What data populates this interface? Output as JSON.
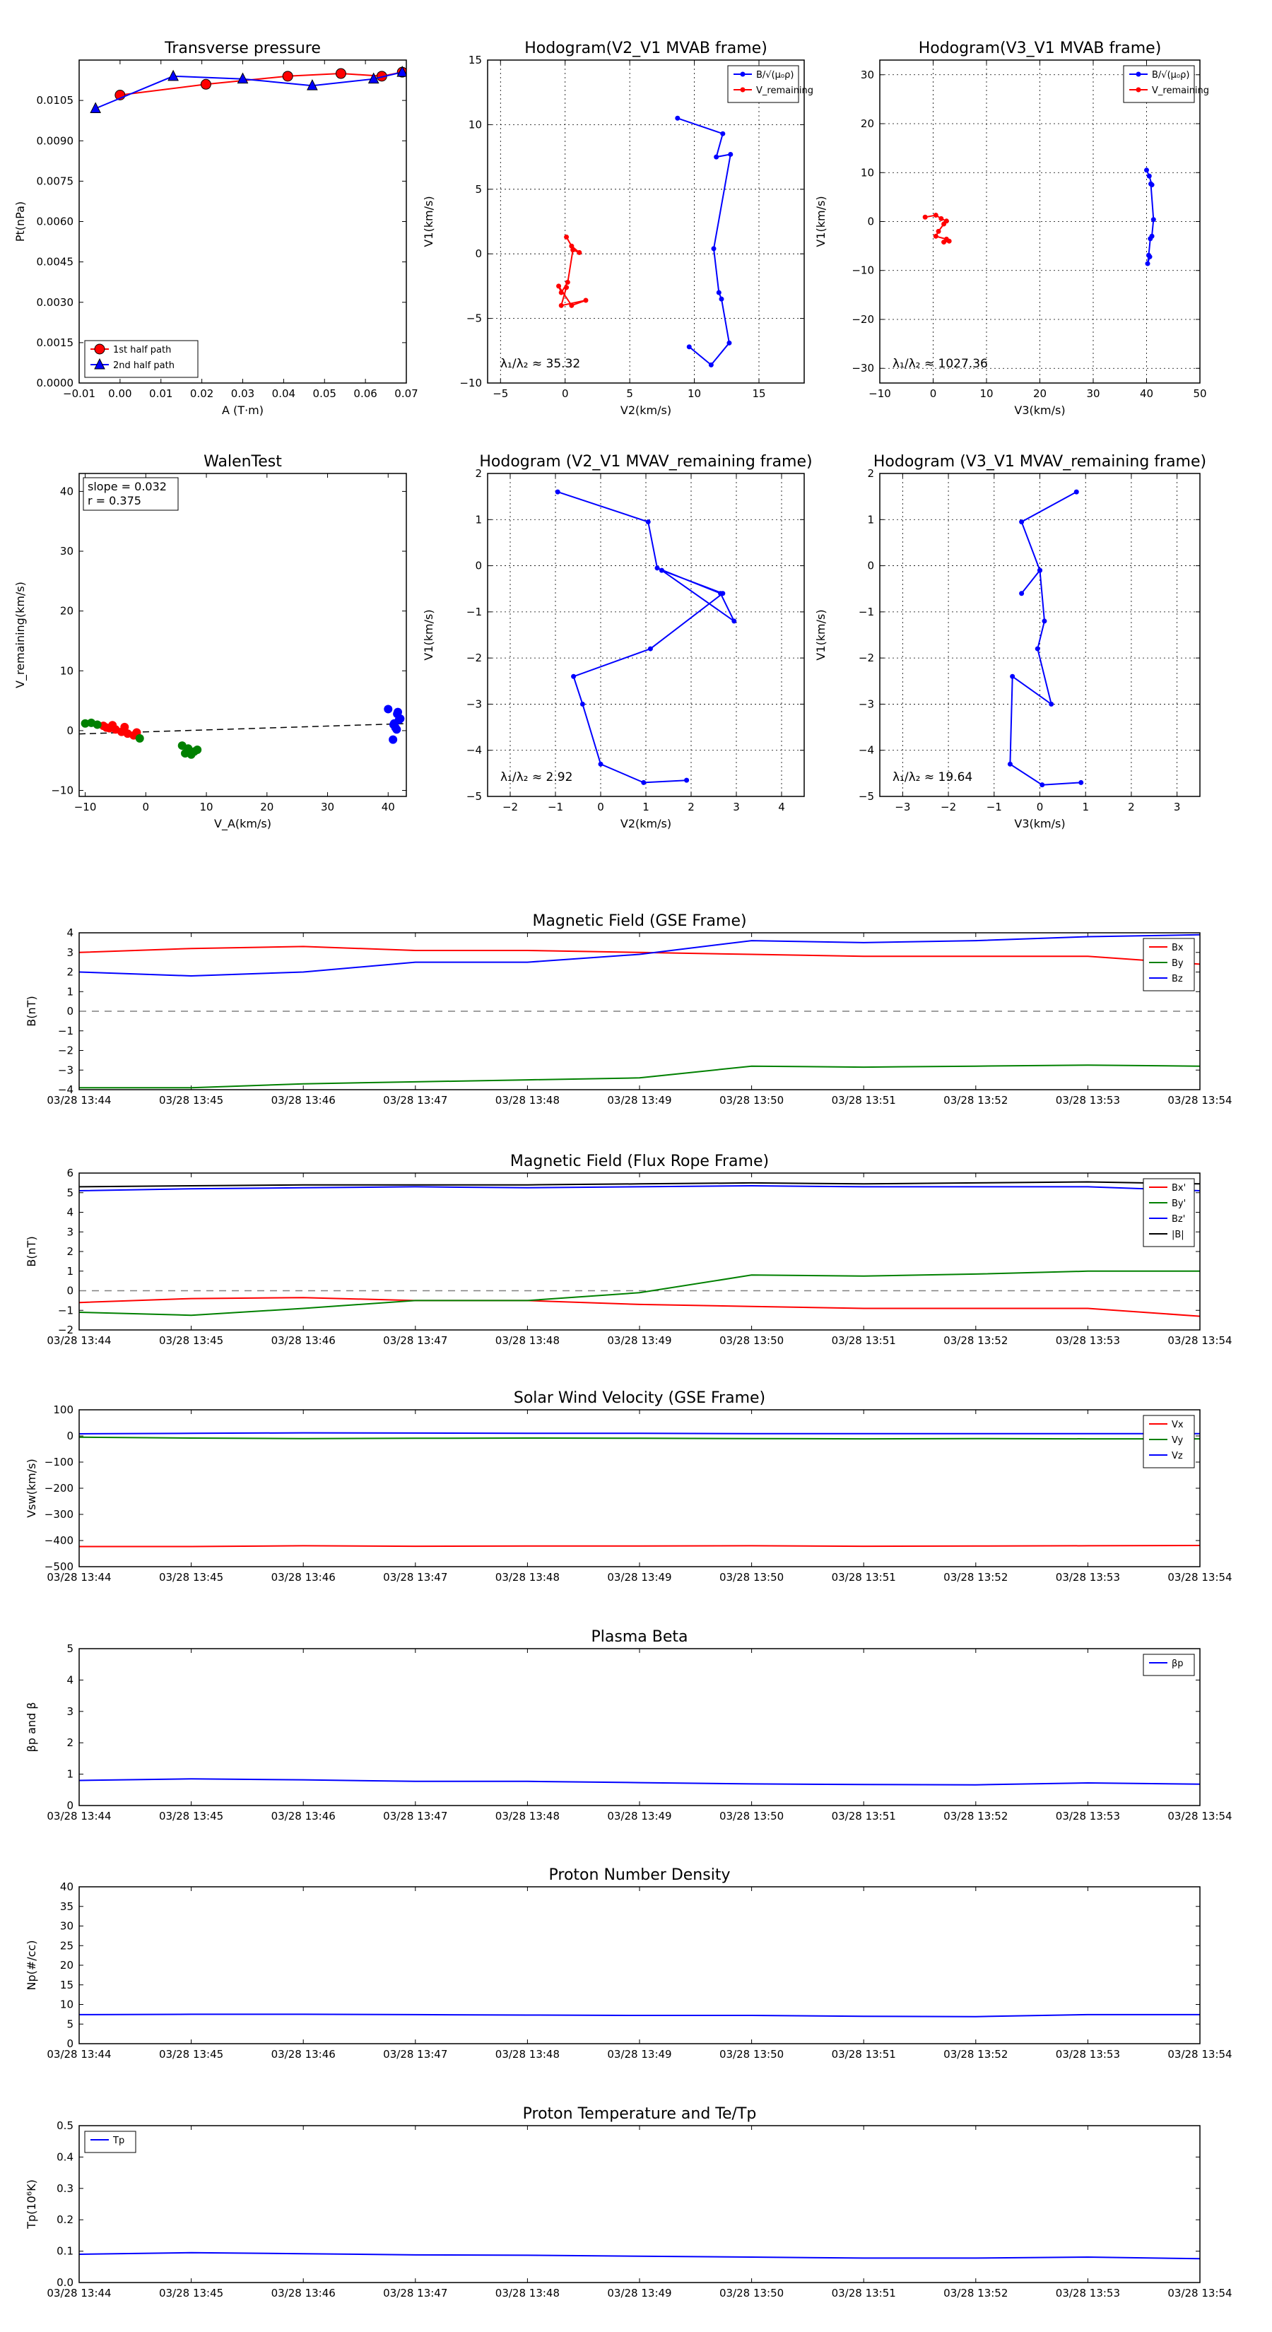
{
  "colors": {
    "red": "#ff0000",
    "blue": "#0000ff",
    "green": "#008000",
    "black": "#000000",
    "grey": "#808080"
  },
  "chart_data": [
    {
      "id": "pt",
      "type": "line",
      "title": "Transverse pressure",
      "xlabel": "A (T·m)",
      "ylabel": "Pt(nPa)",
      "xlim": [
        -0.01,
        0.07
      ],
      "ylim": [
        0,
        0.012
      ],
      "xticks": [
        -0.01,
        0.0,
        0.01,
        0.02,
        0.03,
        0.04,
        0.05,
        0.06,
        0.07
      ],
      "xtick_labels": [
        "−0.01",
        "0.00",
        "0.01",
        "0.02",
        "0.03",
        "0.04",
        "0.05",
        "0.06",
        "0.07"
      ],
      "yticks": [
        0,
        0.0015,
        0.003,
        0.0045,
        0.006,
        0.0075,
        0.009,
        0.0105
      ],
      "ytick_labels": [
        "0.0000",
        "0.0015",
        "0.0030",
        "0.0045",
        "0.0060",
        "0.0075",
        "0.0090",
        "0.0105"
      ],
      "grid": false,
      "legend_loc": "lower-left",
      "series": [
        {
          "name": "1st half path",
          "color": "#ff0000",
          "marker": "circle",
          "x": [
            0.069,
            0.064,
            0.054,
            0.041,
            0.021,
            0.0
          ],
          "y": [
            0.01155,
            0.0114,
            0.0115,
            0.0114,
            0.0111,
            0.0107
          ]
        },
        {
          "name": "2nd half path",
          "color": "#0000ff",
          "marker": "triangle",
          "x": [
            0.069,
            0.062,
            0.047,
            0.03,
            0.013,
            -0.006
          ],
          "y": [
            0.01155,
            0.0113,
            0.01105,
            0.0113,
            0.0114,
            0.0102
          ]
        }
      ]
    },
    {
      "id": "h_mvab_v2",
      "type": "line",
      "title": "Hodogram(V2_V1 MVAB frame)",
      "xlabel": "V2(km/s)",
      "ylabel": "V1(km/s)",
      "xlim": [
        -6,
        18.5
      ],
      "ylim": [
        -10,
        15
      ],
      "xticks": [
        -5,
        0,
        5,
        10,
        15
      ],
      "xtick_labels": [
        "−5",
        "0",
        "5",
        "10",
        "15"
      ],
      "yticks": [
        -10,
        -5,
        0,
        5,
        10,
        15
      ],
      "ytick_labels": [
        "−10",
        "−5",
        "0",
        "5",
        "10",
        "15"
      ],
      "grid": true,
      "legend_loc": "top-right",
      "annotation": "λ₁/λ₂ ≈ 35.32",
      "series": [
        {
          "name": "B/√(μ₀ρ)",
          "color": "#0000ff",
          "marker": "dot",
          "x": [
            8.7,
            12.2,
            11.7,
            12.8,
            11.5,
            11.9,
            12.1,
            12.7,
            11.3,
            9.6
          ],
          "y": [
            10.5,
            9.3,
            7.5,
            7.7,
            0.4,
            -3.0,
            -3.5,
            -6.9,
            -8.6,
            -7.2
          ]
        },
        {
          "name": "V_remaining",
          "color": "#ff0000",
          "marker": "dot",
          "x": [
            0.1,
            0.5,
            1.1,
            0.6,
            0.2,
            -0.3,
            -0.5,
            0.5,
            1.6,
            -0.3,
            0.1
          ],
          "y": [
            1.3,
            0.6,
            0.1,
            0.3,
            -2.2,
            -3.0,
            -2.5,
            -4.0,
            -3.6,
            -4.0,
            -2.6
          ]
        }
      ]
    },
    {
      "id": "h_mvab_v3",
      "type": "line",
      "title": "Hodogram(V3_V1 MVAB frame)",
      "xlabel": "V3(km/s)",
      "ylabel": "V1(km/s)",
      "xlim": [
        -10,
        50
      ],
      "ylim": [
        -33,
        33
      ],
      "xticks": [
        -10,
        0,
        10,
        20,
        30,
        40,
        50
      ],
      "xtick_labels": [
        "−10",
        "0",
        "10",
        "20",
        "30",
        "40",
        "50"
      ],
      "yticks": [
        -30,
        -20,
        -10,
        0,
        10,
        20,
        30
      ],
      "ytick_labels": [
        "−30",
        "−20",
        "−10",
        "0",
        "10",
        "20",
        "30"
      ],
      "grid": true,
      "legend_loc": "top-right",
      "annotation": "λ₁/λ₂ ≈ 1027.36",
      "series": [
        {
          "name": "B/√(μ₀ρ)",
          "color": "#0000ff",
          "marker": "dot",
          "x": [
            40.0,
            40.5,
            41.0,
            40.8,
            41.3,
            41.0,
            40.7,
            40.4,
            40.2,
            40.6
          ],
          "y": [
            10.5,
            9.3,
            7.5,
            7.7,
            0.4,
            -3.0,
            -3.5,
            -6.9,
            -8.6,
            -7.2
          ]
        },
        {
          "name": "V_remaining",
          "color": "#ff0000",
          "marker": "dot",
          "x": [
            -1.5,
            0.5,
            1.5,
            2.5,
            2.0,
            1.0,
            0.5,
            2.5,
            3.0,
            2.0
          ],
          "y": [
            0.9,
            1.3,
            0.6,
            0.1,
            -0.5,
            -2.0,
            -3.0,
            -3.6,
            -4.0,
            -4.2
          ]
        }
      ]
    },
    {
      "id": "walen",
      "type": "scatter",
      "title": "WalenTest",
      "xlabel": "V_A(km/s)",
      "ylabel": "V_remaining(km/s)",
      "xlim": [
        -11,
        43
      ],
      "ylim": [
        -11,
        43
      ],
      "xticks": [
        -10,
        0,
        10,
        20,
        30,
        40
      ],
      "xtick_labels": [
        "−10",
        "0",
        "10",
        "20",
        "30",
        "40"
      ],
      "yticks": [
        -10,
        0,
        10,
        20,
        30,
        40
      ],
      "ytick_labels": [
        "−10",
        "0",
        "10",
        "20",
        "30",
        "40"
      ],
      "grid": false,
      "stats": [
        "slope = 0.032",
        "r = 0.375"
      ],
      "fit": {
        "slope": 0.032,
        "intercept": -0.2,
        "x": [
          -11,
          43
        ]
      },
      "series": [
        {
          "color": "#ff0000",
          "x": [
            -7.0,
            -6.0,
            -5.0,
            -4.0,
            -3.0,
            -2.0,
            -1.5,
            -3.5,
            -5.5,
            -6.5
          ],
          "y": [
            0.8,
            0.4,
            0.2,
            -0.2,
            -0.5,
            -0.8,
            -0.3,
            0.6,
            0.9,
            0.5
          ]
        },
        {
          "color": "#008000",
          "x": [
            -10.0,
            -9.0,
            -8.0,
            -1.0,
            6.0,
            7.0,
            8.0,
            7.5,
            8.5,
            6.5
          ],
          "y": [
            1.2,
            1.3,
            1.0,
            -1.3,
            -2.5,
            -3.0,
            -3.5,
            -4.0,
            -3.2,
            -3.8
          ]
        },
        {
          "color": "#0000ff",
          "x": [
            40.0,
            41.0,
            41.5,
            41.8,
            41.2,
            40.8,
            41.6,
            42.0,
            41.4,
            40.9
          ],
          "y": [
            3.6,
            1.2,
            2.8,
            1.8,
            0.5,
            -1.5,
            3.1,
            2.0,
            0.2,
            1.0
          ]
        }
      ]
    },
    {
      "id": "h_mvav_v2",
      "type": "line",
      "title": "Hodogram (V2_V1 MVAV_remaining frame)",
      "xlabel": "V2(km/s)",
      "ylabel": "V1(km/s)",
      "xlim": [
        -2.5,
        4.5
      ],
      "ylim": [
        -5,
        2
      ],
      "xticks": [
        -2,
        -1,
        0,
        1,
        2,
        3,
        4
      ],
      "xtick_labels": [
        "−2",
        "−1",
        "0",
        "1",
        "2",
        "3",
        "4"
      ],
      "yticks": [
        -5,
        -4,
        -3,
        -2,
        -1,
        0,
        1,
        2
      ],
      "ytick_labels": [
        "−5",
        "−4",
        "−3",
        "−2",
        "−1",
        "0",
        "1",
        "2"
      ],
      "grid": true,
      "annotation": "λ₁/λ₂ ≈ 2.92",
      "series": [
        {
          "color": "#0000ff",
          "marker": "dot",
          "x": [
            -0.95,
            1.05,
            1.25,
            2.65,
            2.95,
            1.35,
            2.7,
            1.1,
            -0.6,
            -0.4,
            0.0,
            0.95,
            1.9
          ],
          "y": [
            1.6,
            0.95,
            -0.05,
            -0.6,
            -1.2,
            -0.1,
            -0.6,
            -1.8,
            -2.4,
            -3.0,
            -4.3,
            -4.7,
            -4.65
          ]
        }
      ]
    },
    {
      "id": "h_mvav_v3",
      "type": "line",
      "title": "Hodogram (V3_V1 MVAV_remaining frame)",
      "xlabel": "V3(km/s)",
      "ylabel": "V1(km/s)",
      "xlim": [
        -3.5,
        3.5
      ],
      "ylim": [
        -5,
        2
      ],
      "xticks": [
        -3,
        -2,
        -1,
        0,
        1,
        2,
        3
      ],
      "xtick_labels": [
        "−3",
        "−2",
        "−1",
        "0",
        "1",
        "2",
        "3"
      ],
      "yticks": [
        -5,
        -4,
        -3,
        -2,
        -1,
        0,
        1,
        2
      ],
      "ytick_labels": [
        "−5",
        "−4",
        "−3",
        "−2",
        "−1",
        "0",
        "1",
        "2"
      ],
      "grid": true,
      "annotation": "λ₁/λ₂ ≈ 19.64",
      "series": [
        {
          "color": "#0000ff",
          "marker": "dot",
          "x": [
            0.8,
            -0.4,
            0.0,
            -0.4,
            0.0,
            0.1,
            -0.05,
            0.25,
            -0.6,
            -0.65,
            0.05,
            0.9
          ],
          "y": [
            1.6,
            0.95,
            -0.1,
            -0.6,
            -0.1,
            -1.2,
            -1.8,
            -3.0,
            -2.4,
            -4.3,
            -4.75,
            -4.7
          ]
        }
      ]
    },
    {
      "id": "b_gse",
      "type": "line",
      "title": "Magnetic Field (GSE Frame)",
      "ylabel": "B(nT)",
      "x": [
        "03/28 13:44",
        "03/28 13:45",
        "03/28 13:46",
        "03/28 13:47",
        "03/28 13:48",
        "03/28 13:49",
        "03/28 13:50",
        "03/28 13:51",
        "03/28 13:52",
        "03/28 13:53",
        "03/28 13:54"
      ],
      "ylim": [
        -4,
        4
      ],
      "yticks": [
        -4,
        -3,
        -2,
        -1,
        0,
        1,
        2,
        3,
        4
      ],
      "ytick_labels": [
        "−4",
        "−3",
        "−2",
        "−1",
        "0",
        "1",
        "2",
        "3",
        "4"
      ],
      "zero_line": true,
      "legend_loc": "top-right",
      "series": [
        {
          "name": "Bx",
          "color": "#ff0000",
          "values": [
            3.0,
            3.2,
            3.3,
            3.1,
            3.1,
            3.0,
            2.9,
            2.8,
            2.8,
            2.8,
            2.4
          ]
        },
        {
          "name": "By",
          "color": "#008000",
          "values": [
            -3.9,
            -3.9,
            -3.7,
            -3.6,
            -3.5,
            -3.4,
            -2.8,
            -2.85,
            -2.8,
            -2.75,
            -2.8
          ]
        },
        {
          "name": "Bz",
          "color": "#0000ff",
          "values": [
            2.0,
            1.8,
            2.0,
            2.5,
            2.5,
            2.9,
            3.6,
            3.5,
            3.6,
            3.8,
            3.9
          ]
        }
      ]
    },
    {
      "id": "b_fr",
      "type": "line",
      "title": "Magnetic Field (Flux Rope Frame)",
      "ylabel": "B(nT)",
      "x": [
        "03/28 13:44",
        "03/28 13:45",
        "03/28 13:46",
        "03/28 13:47",
        "03/28 13:48",
        "03/28 13:49",
        "03/28 13:50",
        "03/28 13:51",
        "03/28 13:52",
        "03/28 13:53",
        "03/28 13:54"
      ],
      "ylim": [
        -2,
        6
      ],
      "yticks": [
        -2,
        -1,
        0,
        1,
        2,
        3,
        4,
        5,
        6
      ],
      "ytick_labels": [
        "−2",
        "−1",
        "0",
        "1",
        "2",
        "3",
        "4",
        "5",
        "6"
      ],
      "zero_line": true,
      "legend_loc": "top-right",
      "series": [
        {
          "name": "Bx'",
          "color": "#ff0000",
          "values": [
            -0.6,
            -0.4,
            -0.35,
            -0.5,
            -0.5,
            -0.7,
            -0.8,
            -0.9,
            -0.9,
            -0.9,
            -1.3
          ]
        },
        {
          "name": "By'",
          "color": "#008000",
          "values": [
            -1.1,
            -1.25,
            -0.9,
            -0.5,
            -0.5,
            -0.1,
            0.8,
            0.75,
            0.85,
            1.0,
            1.0
          ]
        },
        {
          "name": "Bz'",
          "color": "#0000ff",
          "values": [
            5.1,
            5.2,
            5.25,
            5.3,
            5.25,
            5.3,
            5.35,
            5.3,
            5.3,
            5.3,
            5.1
          ]
        },
        {
          "name": "|B|",
          "color": "#000000",
          "values": [
            5.3,
            5.35,
            5.4,
            5.4,
            5.4,
            5.45,
            5.5,
            5.45,
            5.5,
            5.55,
            5.45
          ]
        }
      ]
    },
    {
      "id": "vsw",
      "type": "line",
      "title": "Solar Wind Velocity (GSE Frame)",
      "ylabel": "Vsw(km/s)",
      "x": [
        "03/28 13:44",
        "03/28 13:45",
        "03/28 13:46",
        "03/28 13:47",
        "03/28 13:48",
        "03/28 13:49",
        "03/28 13:50",
        "03/28 13:51",
        "03/28 13:52",
        "03/28 13:53",
        "03/28 13:54"
      ],
      "ylim": [
        -500,
        100
      ],
      "yticks": [
        -500,
        -400,
        -300,
        -200,
        -100,
        0,
        100
      ],
      "ytick_labels": [
        "−500",
        "−400",
        "−300",
        "−200",
        "−100",
        "0",
        "100"
      ],
      "legend_loc": "top-right",
      "series": [
        {
          "name": "Vx",
          "color": "#ff0000",
          "values": [
            -423,
            -423,
            -420,
            -422,
            -421,
            -421,
            -420,
            -422,
            -421,
            -420,
            -419
          ]
        },
        {
          "name": "Vy",
          "color": "#008000",
          "values": [
            -5,
            -8,
            -10,
            -9,
            -8,
            -9,
            -10,
            -11,
            -10,
            -11,
            -11
          ]
        },
        {
          "name": "Vz",
          "color": "#0000ff",
          "values": [
            8,
            10,
            12,
            11,
            10,
            10,
            9,
            9,
            9,
            9,
            9
          ]
        }
      ]
    },
    {
      "id": "beta",
      "type": "line",
      "title": "Plasma Beta",
      "ylabel": "βp and β",
      "x": [
        "03/28 13:44",
        "03/28 13:45",
        "03/28 13:46",
        "03/28 13:47",
        "03/28 13:48",
        "03/28 13:49",
        "03/28 13:50",
        "03/28 13:51",
        "03/28 13:52",
        "03/28 13:53",
        "03/28 13:54"
      ],
      "ylim": [
        0,
        5
      ],
      "yticks": [
        0,
        1,
        2,
        3,
        4,
        5
      ],
      "ytick_labels": [
        "0",
        "1",
        "2",
        "3",
        "4",
        "5"
      ],
      "legend_loc": "top-right",
      "series": [
        {
          "name": "βp",
          "color": "#0000ff",
          "values": [
            0.8,
            0.85,
            0.82,
            0.77,
            0.77,
            0.73,
            0.69,
            0.67,
            0.66,
            0.72,
            0.68
          ]
        }
      ]
    },
    {
      "id": "np",
      "type": "line",
      "title": "Proton Number Density",
      "ylabel": "Np(#/cc)",
      "x": [
        "03/28 13:44",
        "03/28 13:45",
        "03/28 13:46",
        "03/28 13:47",
        "03/28 13:48",
        "03/28 13:49",
        "03/28 13:50",
        "03/28 13:51",
        "03/28 13:52",
        "03/28 13:53",
        "03/28 13:54"
      ],
      "ylim": [
        0,
        40
      ],
      "yticks": [
        0,
        5,
        10,
        15,
        20,
        25,
        30,
        35,
        40
      ],
      "ytick_labels": [
        "0",
        "5",
        "10",
        "15",
        "20",
        "25",
        "30",
        "35",
        "40"
      ],
      "series": [
        {
          "color": "#0000ff",
          "values": [
            7.4,
            7.5,
            7.5,
            7.4,
            7.3,
            7.2,
            7.2,
            7.0,
            6.9,
            7.4,
            7.4
          ]
        }
      ]
    },
    {
      "id": "tp",
      "type": "line",
      "title": "Proton Temperature and Te/Tp",
      "ylabel": "Tp(10⁶K)",
      "x": [
        "03/28 13:44",
        "03/28 13:45",
        "03/28 13:46",
        "03/28 13:47",
        "03/28 13:48",
        "03/28 13:49",
        "03/28 13:50",
        "03/28 13:51",
        "03/28 13:52",
        "03/28 13:53",
        "03/28 13:54"
      ],
      "ylim": [
        0,
        0.5
      ],
      "yticks": [
        0,
        0.1,
        0.2,
        0.3,
        0.4,
        0.5
      ],
      "ytick_labels": [
        "0.0",
        "0.1",
        "0.2",
        "0.3",
        "0.4",
        "0.5"
      ],
      "legend_loc": "top-left",
      "series": [
        {
          "name": "Tp",
          "color": "#0000ff",
          "values": [
            0.09,
            0.095,
            0.092,
            0.088,
            0.087,
            0.084,
            0.081,
            0.078,
            0.078,
            0.081,
            0.076
          ]
        }
      ]
    }
  ]
}
